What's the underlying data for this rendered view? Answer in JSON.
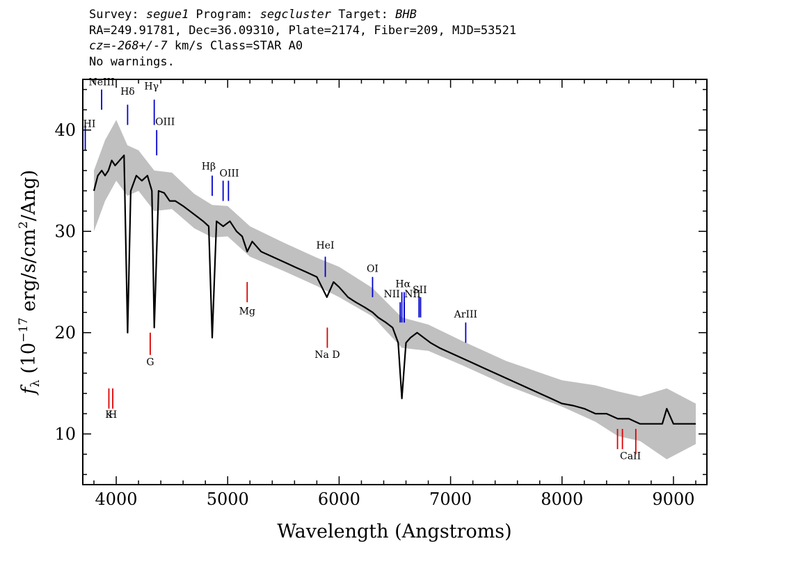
{
  "header": {
    "line1": {
      "survey_label": "Survey: ",
      "survey": "segue1",
      "program_label": " Program: ",
      "program": "segcluster",
      "target_label": " Target: ",
      "target": "BHB"
    },
    "line2": "RA=249.91781, Dec=36.09310, Plate=2174, Fiber=209, MJD=53521",
    "line3": {
      "cz": "cz=-268+/-7",
      "rest": " km/s Class=STAR A0"
    },
    "line4": "No warnings."
  },
  "colors": {
    "spectrum": "#000000",
    "error_band": "#c0c0c0",
    "emission": "#0000cc",
    "absorption": "#dd0000"
  },
  "chart_data": {
    "type": "line",
    "xlabel": "Wavelength (Angstroms)",
    "ylabel": "f_λ (10^-17 erg/s/cm^2/Ang)",
    "ylabel_parts": {
      "f": "f",
      "sub": "λ",
      "pre": " (10",
      "exp": "−17",
      "mid": " erg/s/cm",
      "exp2": "2",
      "post": "/Ang)"
    },
    "xlim": [
      3700,
      9300
    ],
    "ylim": [
      5,
      45
    ],
    "xticks": [
      4000,
      5000,
      6000,
      7000,
      8000,
      9000
    ],
    "xtick_labels": [
      "4000",
      "5000",
      "6000",
      "7000",
      "8000",
      "9000"
    ],
    "yticks": [
      10,
      20,
      30,
      40
    ],
    "ytick_labels": [
      "10",
      "20",
      "30",
      "40"
    ],
    "series": [
      {
        "style": "black-line",
        "x": [
          3800,
          3835,
          3870,
          3900,
          3930,
          3960,
          3990,
          4030,
          4070,
          4102,
          4130,
          4180,
          4230,
          4280,
          4320,
          4341,
          4380,
          4430,
          4480,
          4530,
          4600,
          4660,
          4720,
          4780,
          4830,
          4861,
          4900,
          4960,
          5020,
          5080,
          5130,
          5175,
          5220,
          5300,
          5400,
          5500,
          5600,
          5700,
          5800,
          5890,
          5950,
          6000,
          6080,
          6150,
          6230,
          6300,
          6350,
          6420,
          6480,
          6530,
          6563,
          6600,
          6640,
          6700,
          6760,
          6820,
          6900,
          7000,
          7100,
          7200,
          7300,
          7400,
          7500,
          7600,
          7700,
          7800,
          7900,
          8000,
          8100,
          8200,
          8300,
          8400,
          8500,
          8600,
          8700,
          8800,
          8900,
          8940,
          9000,
          9100,
          9200
        ],
        "y": [
          34,
          35.5,
          36,
          35.5,
          36,
          37,
          36.5,
          37,
          37.5,
          20,
          34,
          35.5,
          35,
          35.5,
          34,
          20.5,
          34,
          33.8,
          33,
          33,
          32.5,
          32,
          31.5,
          31,
          30.5,
          19.5,
          31,
          30.5,
          31,
          30,
          29.5,
          28,
          29,
          28,
          27.5,
          27,
          26.5,
          26,
          25.5,
          23.5,
          25,
          24.5,
          23.5,
          23,
          22.5,
          22,
          21.5,
          21,
          20.5,
          19,
          13.5,
          19,
          19.5,
          20,
          19.5,
          19,
          18.5,
          18,
          17.5,
          17,
          16.5,
          16,
          15.5,
          15,
          14.5,
          14,
          13.5,
          13,
          12.8,
          12.5,
          12,
          12,
          11.5,
          11.5,
          11,
          11,
          11,
          12.5,
          11,
          11,
          11
        ]
      },
      {
        "style": "grey-band",
        "x": [
          3800,
          3900,
          4000,
          4100,
          4200,
          4341,
          4500,
          4700,
          4861,
          5000,
          5200,
          5500,
          5800,
          6000,
          6300,
          6563,
          6800,
          7100,
          7500,
          8000,
          8300,
          8500,
          8700,
          8940,
          9200
        ],
        "y": [
          33,
          36,
          38,
          36,
          36,
          34,
          34,
          32,
          31,
          31,
          29,
          27.5,
          26,
          25,
          23,
          20,
          19.5,
          18,
          16,
          14,
          13,
          12,
          11.5,
          11,
          11
        ],
        "yerr": [
          3,
          3,
          3,
          2.5,
          2,
          2,
          1.8,
          1.7,
          1.6,
          1.5,
          1.5,
          1.4,
          1.4,
          1.5,
          1.4,
          1.5,
          1.3,
          1.2,
          1.2,
          1.3,
          1.8,
          2.2,
          2.2,
          3.5,
          2
        ]
      }
    ],
    "emission_lines": [
      {
        "label": "HI",
        "x": [
          3722
        ],
        "y0": 38,
        "y1": 40.5,
        "label_y": 40.3,
        "label_dx": 6
      },
      {
        "label": "NeIII",
        "x": [
          3869
        ],
        "y0": 42,
        "y1": 44,
        "label_y": 44.4,
        "label_dx": 0
      },
      {
        "label": "Hδ",
        "x": [
          4102
        ],
        "y0": 40.5,
        "y1": 42.5,
        "label_y": 43.5,
        "label_dx": 0
      },
      {
        "label": "Hγ",
        "x": [
          4341
        ],
        "y0": 40.5,
        "y1": 43,
        "label_y": 44,
        "label_dx": -4
      },
      {
        "label": "OIII",
        "x": [
          4363
        ],
        "y0": 37.5,
        "y1": 40,
        "label_y": 40.5,
        "label_dx": 12
      },
      {
        "label": "Hβ",
        "x": [
          4861
        ],
        "y0": 33.5,
        "y1": 35.5,
        "label_y": 36.1,
        "label_dx": -5
      },
      {
        "label": "OIII",
        "x": [
          4959,
          5007
        ],
        "y0": 33,
        "y1": 35,
        "label_y": 35.4,
        "label_dx": 5
      },
      {
        "label": "HeI",
        "x": [
          5876
        ],
        "y0": 25.5,
        "y1": 27.5,
        "label_y": 28.3,
        "label_dx": 0
      },
      {
        "label": "OI",
        "x": [
          6300
        ],
        "y0": 23.5,
        "y1": 25.5,
        "label_y": 26,
        "label_dx": 0
      },
      {
        "label": "NII",
        "x": [
          6548
        ],
        "y0": 21,
        "y1": 23,
        "label_y": 23.5,
        "label_dx": -12
      },
      {
        "label": "Hα",
        "x": [
          6563,
          6584
        ],
        "y0": 21,
        "y1": 24,
        "label_y": 24.5,
        "label_dx": 0
      },
      {
        "label": "NII",
        "x": [
          6584
        ],
        "y0": 21,
        "y1": 23,
        "label_y": 23.5,
        "label_dx": 12
      },
      {
        "label": "SII",
        "x": [
          6717,
          6731
        ],
        "y0": 21.5,
        "y1": 23.5,
        "label_y": 23.9,
        "label_dx": 0
      },
      {
        "label": "ArIII",
        "x": [
          7136
        ],
        "y0": 19,
        "y1": 21,
        "label_y": 21.5,
        "label_dx": 0
      }
    ],
    "absorption_lines": [
      {
        "label": "K",
        "x": [
          3934
        ],
        "y0": 12.5,
        "y1": 14.5,
        "label_y": 11.6,
        "label_dx": 0
      },
      {
        "label": "H",
        "x": [
          3969
        ],
        "y0": 12.5,
        "y1": 14.5,
        "label_y": 11.6,
        "label_dx": 0
      },
      {
        "label": "G",
        "x": [
          4305
        ],
        "y0": 17.8,
        "y1": 20,
        "label_y": 16.8,
        "label_dx": 0
      },
      {
        "label": "Mg",
        "x": [
          5175
        ],
        "y0": 23,
        "y1": 25,
        "label_y": 21.8,
        "label_dx": 0
      },
      {
        "label": "Na  D",
        "x": [
          5894
        ],
        "y0": 18.5,
        "y1": 20.5,
        "label_y": 17.5,
        "label_dx": 0
      },
      {
        "label": "CaII",
        "x": [
          8498,
          8542
        ],
        "y0": 8.5,
        "y1": 10.5,
        "label_y": 7.5,
        "label_dx": 15
      },
      {
        "label": "",
        "x": [
          8662
        ],
        "y0": 8,
        "y1": 10.5,
        "label_y": 0,
        "label_dx": 0
      }
    ]
  }
}
